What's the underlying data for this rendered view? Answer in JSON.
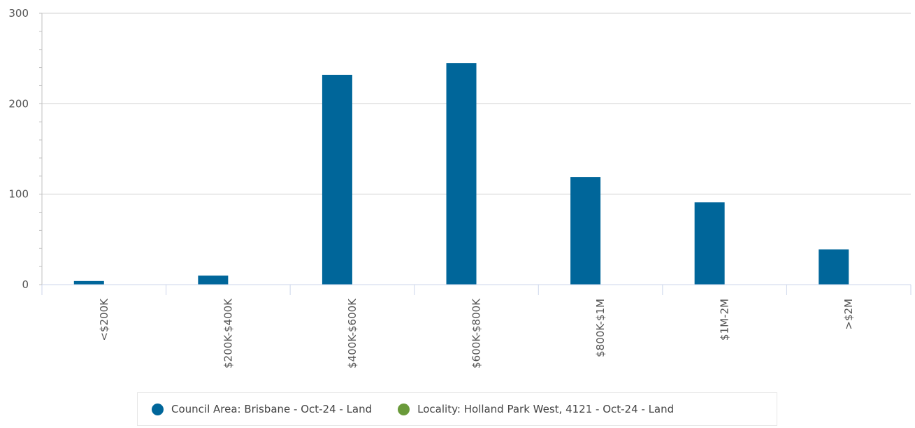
{
  "chart_data": {
    "type": "bar",
    "categories": [
      "<$200K",
      "$200K-$400K",
      "$400K-$600K",
      "$600K-$800K",
      "$800K-$1M",
      "$1M-2M",
      ">$2M"
    ],
    "series": [
      {
        "name": "Council Area: Brisbane - Oct-24 - Land",
        "color": "#00669a",
        "values": [
          4,
          10,
          232,
          245,
          119,
          91,
          39
        ]
      },
      {
        "name": "Locality: Holland Park West, 4121 - Oct-24 - Land",
        "color": "#6a9a3a",
        "values": [
          0,
          0,
          0,
          0,
          0,
          0,
          0
        ]
      }
    ],
    "yticks": [
      0,
      100,
      200,
      300
    ],
    "ylim": [
      0,
      300
    ],
    "grid": true,
    "legend_position": "bottom"
  }
}
